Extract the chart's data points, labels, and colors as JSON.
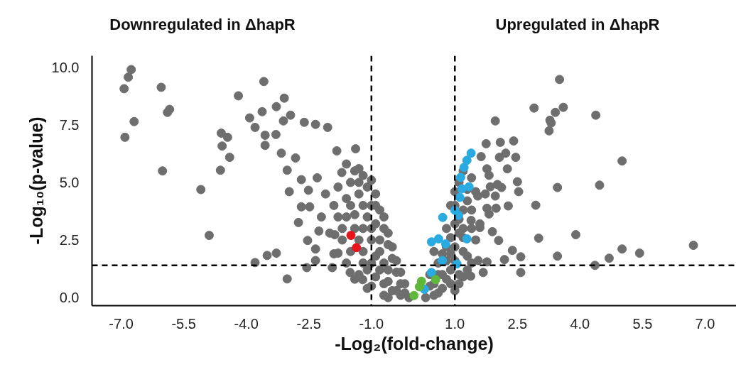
{
  "chart_data": {
    "type": "scatter",
    "xlabel": "-Log₂(fold-change)",
    "ylabel": "-Log₁₀(p-value)",
    "annotations": [
      "Downregulated in ΔhapR",
      "Upregulated in ΔhapR"
    ],
    "xlim": [
      -7.7,
      7.75
    ],
    "ylim": [
      -0.35,
      10.5
    ],
    "xticks": [
      {
        "value": -7,
        "label": "-7.0"
      },
      {
        "value": -5.5,
        "label": "-5.5"
      },
      {
        "value": -4,
        "label": "-4.0"
      },
      {
        "value": -2.5,
        "label": "-2.5"
      },
      {
        "value": -1,
        "label": "-1.0"
      },
      {
        "value": 1,
        "label": "1.0"
      },
      {
        "value": 2.5,
        "label": "2.5"
      },
      {
        "value": 4,
        "label": "4.0"
      },
      {
        "value": 5.5,
        "label": "5.5"
      },
      {
        "value": 7,
        "label": "7.0"
      }
    ],
    "yticks": [
      {
        "value": 0,
        "label": "0.0"
      },
      2.5,
      {
        "value": 5,
        "label": "5.0"
      },
      7.5,
      {
        "value": 10,
        "label": "10.0"
      }
    ],
    "marker": "circle",
    "ref_lines": [
      {
        "axis": "x",
        "value": -1,
        "color": "#000000",
        "line_style": "dashed"
      },
      {
        "axis": "x",
        "value": 1,
        "color": "#000000",
        "line_style": "dashed"
      },
      {
        "axis": "y",
        "value": 1.4,
        "color": "#000000",
        "line_style": "dashed"
      }
    ],
    "series": [
      {
        "color": "#6e6e6e",
        "x": [
          -1.5,
          -1.3,
          -1.1,
          -0.9,
          -0.7,
          -0.6,
          -0.5,
          -0.4,
          -0.3,
          -0.2,
          -1.2,
          -1.0,
          -0.9,
          -0.8,
          -0.7,
          -0.6,
          -0.4,
          -1.2,
          -1.0,
          -1.5,
          -1.4,
          -1.7,
          -1.8,
          -1.3,
          -0.9,
          -0.7,
          -0.3,
          -1.1,
          -1.6,
          -1.3,
          0.4,
          0.5,
          0.6,
          0.7,
          0.8,
          0.9,
          1.0,
          1.1,
          1.2,
          1.3,
          1.4,
          1.1,
          1.0,
          0.9,
          0.8,
          1.0,
          1.2,
          1.3,
          1.4,
          1.1,
          0.7,
          0.5,
          0.9,
          1.2,
          1.4,
          -6.76,
          -6.83,
          -6.93,
          -6.04,
          -6.69,
          -6.91,
          -5.84,
          -5.89,
          -6.01,
          -5.09,
          -4.89,
          -4.19,
          -3.58,
          -4.6,
          -4.45,
          -4.58,
          -4.4,
          -4.62,
          -3.09,
          -3.92,
          -3.62,
          -3.28,
          -3.79,
          -3.55,
          -3.55,
          -3.29,
          -3.11,
          -3.16,
          -2.94,
          -2.61,
          -2.34,
          -2.05,
          -2.82,
          -3.02,
          -2.68,
          -2.97,
          -2.51,
          -2.68,
          -2.48,
          -2.75,
          -2.26,
          -2.53,
          -2.34,
          -3.28,
          -3.5,
          -3.79,
          -3.02,
          -2.55,
          -2.34,
          -1.88,
          -1.71,
          -1.83,
          -1.38,
          -1.8,
          -1.94,
          -1.51,
          -1.21,
          -1.6,
          -1.4,
          -1.2,
          -1.0,
          -0.9,
          -0.8,
          -0.7,
          -0.6,
          -0.5,
          -0.4,
          -0.3,
          -0.2,
          -0.1,
          -1.3,
          -1.1,
          -1.0,
          -0.9,
          -0.8,
          -0.7,
          -0.5,
          -1.8,
          -1.9,
          -1.6,
          -1.4,
          -1.2,
          -1.1,
          -1.3,
          -1.6,
          -1.9,
          -2.0,
          -2.2,
          -2.1,
          -2.3,
          -1.7,
          -1.5,
          -1.2,
          -1.0,
          -0.8,
          -0.6,
          -1.4,
          -1.0,
          -0.6,
          0.3,
          0.4,
          0.6,
          0.8,
          1.0,
          1.2,
          1.4,
          1.5,
          1.3,
          1.1,
          0.9,
          0.7,
          1.1,
          1.3,
          1.5,
          0.5,
          0.8,
          1.0,
          1.2,
          0.9,
          1.2,
          1.6,
          0.6,
          1.0,
          3.51,
          2.9,
          3.6,
          3.41,
          3.28,
          3.31,
          3.26,
          4.38,
          1.97,
          1.75,
          2.09,
          2.41,
          1.63,
          2.07,
          2.22,
          2.46,
          5.01,
          1.77,
          2.26,
          1.82,
          2.5,
          2.02,
          1.85,
          2.12,
          2.53,
          3.46,
          4.47,
          1.73,
          1.97,
          1.55,
          2.94,
          2.28,
          1.77,
          1.99,
          1.82,
          1.39,
          1.6,
          1.9,
          2.05,
          3.01,
          3.9,
          6.72,
          5.01,
          5.43,
          2.38,
          2.58,
          3.46,
          4.7,
          4.36,
          2.19,
          1.77,
          1.56,
          2.58,
          1.68,
          1.38
        ],
        "values": [
          5.0,
          5.0,
          4.8,
          4.0,
          3.5,
          2.8,
          2.2,
          1.6,
          1.1,
          0.6,
          3.0,
          3.0,
          3.2,
          2.0,
          1.5,
          0.7,
          0.3,
          1.5,
          1.5,
          2.0,
          3.6,
          3.0,
          3.5,
          2.5,
          0.9,
          0.1,
          0.1,
          0.4,
          4.3,
          5.6,
          1.0,
          0.6,
          1.5,
          1.9,
          2.2,
          2.6,
          3.2,
          3.4,
          3.8,
          4.7,
          5.2,
          5.0,
          4.6,
          4.0,
          0.8,
          1.6,
          2.0,
          1.2,
          1.5,
          0.6,
          1.0,
          0.1,
          1.9,
          2.6,
          3.0,
          9.9,
          9.57,
          9.07,
          9.13,
          7.64,
          6.96,
          8.17,
          8.04,
          5.5,
          4.69,
          2.7,
          8.76,
          9.38,
          7.14,
          6.96,
          6.58,
          6.09,
          5.53,
          8.66,
          7.8,
          8.07,
          8.29,
          7.39,
          7.05,
          6.61,
          7.08,
          7.67,
          6.27,
          7.92,
          7.61,
          7.52,
          7.39,
          6.06,
          5.53,
          5.12,
          4.6,
          4.66,
          3.94,
          3.94,
          3.26,
          2.89,
          2.48,
          2.11,
          1.93,
          1.83,
          1.52,
          0.81,
          1.3,
          1.61,
          2.73,
          5.43,
          6.37,
          6.46,
          1.93,
          1.3,
          1.09,
          0.78,
          5.8,
          5.5,
          5.3,
          5.1,
          4.5,
          3.8,
          3.0,
          2.3,
          1.7,
          1.1,
          0.6,
          0.2,
          0.0,
          4.5,
          3.5,
          2.5,
          1.8,
          1.2,
          0.6,
          0.3,
          4.8,
          4.0,
          3.5,
          3.0,
          2.0,
          1.2,
          1.0,
          1.5,
          1.9,
          2.8,
          3.5,
          4.5,
          5.2,
          2.5,
          4.0,
          4.0,
          4.0,
          2.5,
          1.2,
          0.8,
          0.5,
          0.0,
          0.0,
          0.5,
          1.0,
          1.6,
          2.2,
          3.0,
          3.8,
          4.6,
          4.2,
          2.8,
          1.2,
          0.4,
          1.0,
          1.8,
          2.5,
          2.0,
          3.0,
          4.0,
          5.5,
          0.6,
          0.9,
          3.2,
          0.2,
          0.3,
          9.47,
          8.23,
          8.26,
          8.04,
          7.7,
          7.58,
          7.24,
          7.92,
          7.67,
          6.68,
          6.74,
          6.8,
          6.12,
          6.09,
          6.27,
          6.09,
          5.93,
          5.59,
          5.59,
          5.31,
          5.03,
          4.91,
          4.81,
          4.78,
          4.6,
          4.78,
          4.88,
          4.5,
          4.41,
          4.41,
          4.01,
          3.98,
          3.88,
          3.88,
          3.63,
          3.35,
          3.04,
          2.86,
          2.48,
          2.58,
          2.73,
          2.27,
          2.11,
          1.93,
          2.05,
          1.77,
          1.8,
          1.71,
          1.4,
          1.65,
          1.55,
          1.61,
          1.09,
          1.09,
          0.93
        ]
      },
      {
        "color": "#e8141c",
        "x": [
          -1.49,
          -1.36
        ],
        "values": [
          2.7,
          2.17
        ]
      },
      {
        "color": "#29abe2",
        "x": [
          1.39,
          1.29,
          1.22,
          1.14,
          1.34,
          1.17,
          1.12,
          1.0,
          1.09,
          0.71,
          0.44,
          0.61,
          0.78,
          1.29,
          0.7,
          1.05,
          0.44,
          0.27
        ],
        "values": [
          6.27,
          5.96,
          5.65,
          5.22,
          4.81,
          4.72,
          4.35,
          3.79,
          3.57,
          3.48,
          2.42,
          2.55,
          2.33,
          2.55,
          1.61,
          1.46,
          1.09,
          0.36
        ]
      },
      {
        "color": "#5fb83a",
        "x": [
          0.54,
          0.2,
          0.15,
          0.02
        ],
        "values": [
          0.78,
          0.71,
          0.47,
          0.09
        ]
      }
    ]
  }
}
